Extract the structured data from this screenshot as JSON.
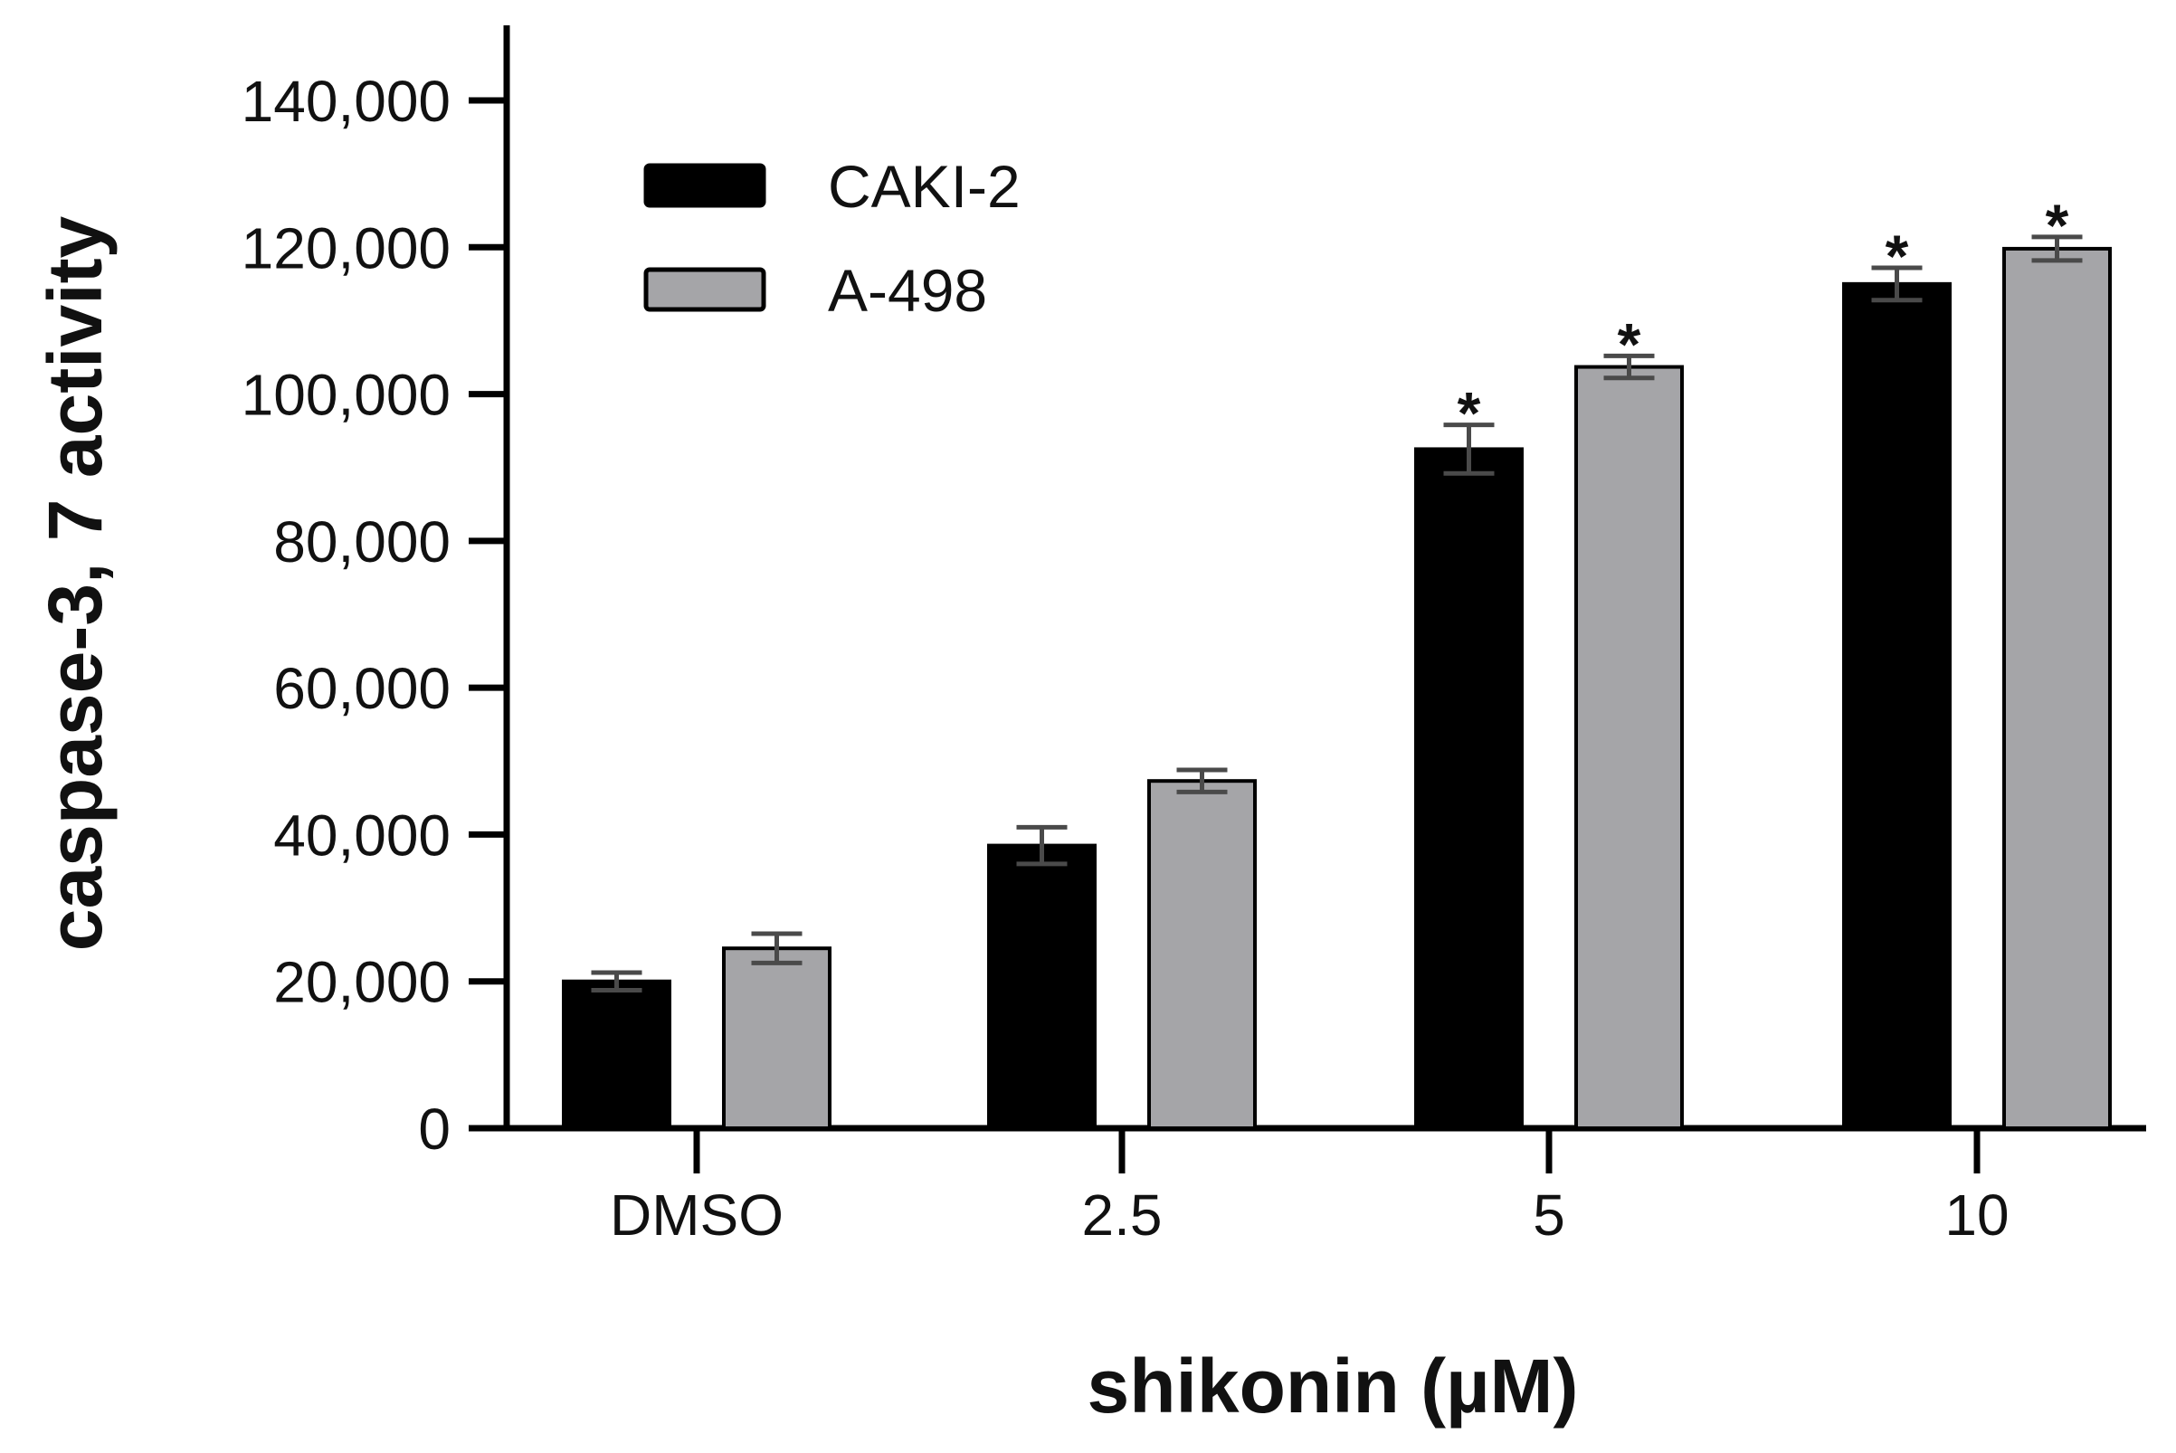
{
  "chart_data": {
    "type": "bar",
    "categories": [
      "DMSO",
      "2.5",
      "5",
      "10"
    ],
    "series": [
      {
        "name": "CAKI-2",
        "color": "#000000",
        "values": [
          20000,
          38500,
          92500,
          115000
        ],
        "errors": [
          1200,
          2500,
          3300,
          2200
        ],
        "significance": [
          "",
          "",
          "*",
          "*"
        ]
      },
      {
        "name": "A-498",
        "color": "#a5a5a8",
        "values": [
          24500,
          47300,
          103700,
          119800
        ],
        "errors": [
          2000,
          1500,
          1500,
          1600
        ],
        "significance": [
          "",
          "",
          "*",
          "*"
        ]
      }
    ],
    "xlabel": "shikonin (µM)",
    "ylabel": "caspase-3, 7 activity",
    "ylim": [
      0,
      140000
    ],
    "yticks": [
      0,
      20000,
      40000,
      60000,
      80000,
      100000,
      120000,
      140000
    ],
    "ytick_labels": [
      "0",
      "20,000",
      "40,000",
      "60,000",
      "80,000",
      "100,000",
      "120,000",
      "140,000"
    ],
    "grid": false,
    "legend": "top-left"
  }
}
